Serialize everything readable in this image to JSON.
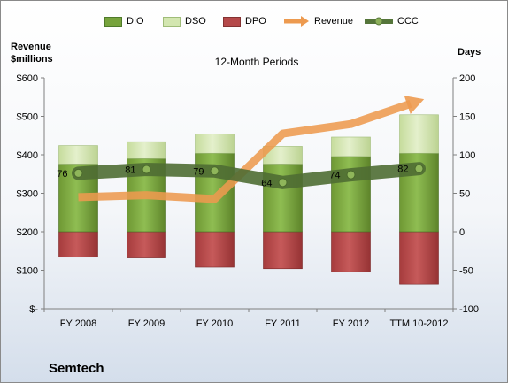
{
  "company": "Semtech",
  "chart_data": {
    "type": "bar",
    "title": "12-Month Periods",
    "ylabel_left": "Revenue $millions",
    "ylabel_right": "Days",
    "categories": [
      "FY 2008",
      "FY 2009",
      "FY 2010",
      "FY 2011",
      "FY 2012",
      "TTM 10-2012"
    ],
    "y_left": {
      "range": [
        0,
        600
      ],
      "ticks": [
        "$-",
        "$100",
        "$200",
        "$300",
        "$400",
        "$500",
        "$600"
      ]
    },
    "y_right": {
      "range": [
        -100,
        200
      ],
      "ticks": [
        "-100",
        "-50",
        "0",
        "50",
        "100",
        "150",
        "200"
      ]
    },
    "series": [
      {
        "name": "DIO",
        "kind": "stacked-bar",
        "axis": "right",
        "color": "#77a33c",
        "values": [
          88,
          95,
          102,
          88,
          98,
          102
        ]
      },
      {
        "name": "DSO",
        "kind": "stacked-bar",
        "axis": "right",
        "color": "#d3e6b0",
        "values": [
          24,
          22,
          25,
          23,
          25,
          50
        ]
      },
      {
        "name": "DPO",
        "kind": "stacked-bar",
        "axis": "right",
        "color": "#b5494a",
        "values": [
          -33,
          -34,
          -46,
          -48,
          -52,
          -68
        ]
      },
      {
        "name": "Revenue",
        "kind": "line",
        "axis": "left",
        "color": "#ed9a4f",
        "values": [
          290,
          295,
          285,
          455,
          480,
          540
        ]
      },
      {
        "name": "CCC",
        "kind": "line",
        "axis": "right",
        "color": "#55753a",
        "values": [
          76,
          81,
          79,
          64,
          74,
          82
        ]
      }
    ],
    "ccc_labels": [
      "76",
      "81",
      "79",
      "64",
      "74",
      "82"
    ]
  }
}
